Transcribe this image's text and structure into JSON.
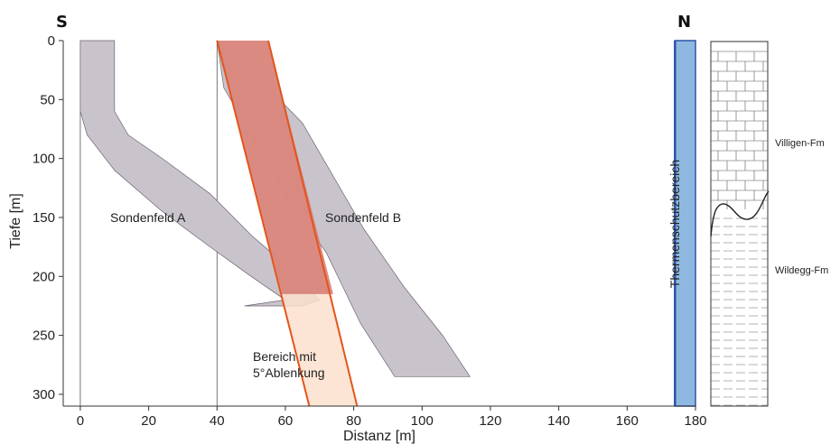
{
  "chart_data": {
    "type": "area",
    "title": "",
    "xlabel": "Distanz [m]",
    "ylabel": "Tiefe [m]",
    "xlim": [
      -5,
      180
    ],
    "ylim": [
      0,
      310
    ],
    "y_inverted": true,
    "x_ticks": [
      0,
      20,
      40,
      60,
      80,
      100,
      120,
      140,
      160,
      180
    ],
    "y_ticks": [
      0,
      50,
      100,
      150,
      200,
      250,
      300
    ],
    "side_labels": {
      "left": "S",
      "right": "N"
    },
    "series": [
      {
        "name": "Sondenfeld A",
        "color": "#c9c4cc",
        "left_edge": [
          [
            0,
            0
          ],
          [
            0,
            60
          ],
          [
            2,
            80
          ],
          [
            10,
            110
          ],
          [
            24,
            145
          ],
          [
            38,
            175
          ],
          [
            50,
            200
          ],
          [
            60,
            220
          ],
          [
            48,
            225
          ]
        ],
        "right_edge": [
          [
            10,
            0
          ],
          [
            10,
            60
          ],
          [
            14,
            80
          ],
          [
            24,
            100
          ],
          [
            38,
            130
          ],
          [
            50,
            165
          ],
          [
            62,
            195
          ],
          [
            70,
            220
          ],
          [
            65,
            225
          ]
        ]
      },
      {
        "name": "Sondenfeld B",
        "color": "#c9c4cc",
        "left_edge": [
          [
            40,
            0
          ],
          [
            42,
            40
          ],
          [
            52,
            90
          ],
          [
            62,
            140
          ],
          [
            72,
            180
          ],
          [
            82,
            240
          ],
          [
            92,
            285
          ]
        ],
        "right_edge": [
          [
            40,
            0
          ],
          [
            55,
            40
          ],
          [
            65,
            70
          ],
          [
            73,
            110
          ],
          [
            83,
            160
          ],
          [
            95,
            210
          ],
          [
            106,
            250
          ],
          [
            114,
            285
          ]
        ]
      },
      {
        "name": "Bereich mit 5°Ablenkung",
        "outer_color": "#fce0cc",
        "inner_color": "#d47a72",
        "edge_color": "#e3551c",
        "outer_left": [
          [
            40,
            0
          ],
          [
            67,
            310
          ]
        ],
        "outer_right": [
          [
            55,
            0
          ],
          [
            81,
            310
          ]
        ],
        "inner_left": [
          [
            40,
            0
          ],
          [
            59,
            215
          ]
        ],
        "inner_right": [
          [
            55,
            0
          ],
          [
            74,
            215
          ]
        ]
      }
    ],
    "labels": {
      "a": "Sondenfeld A",
      "b": "Sondenfeld B",
      "bereich_line1": "Bereich mit",
      "bereich_line2": "5°Ablenkung"
    },
    "vertical_guides": [
      0,
      40
    ],
    "protection_zone": {
      "label": "Thermenschutzbereich",
      "x_start": 174,
      "x_end": 180,
      "fill": "#8fb8e0",
      "edge": "#2a54a8"
    },
    "stratigraphy": {
      "upper": "Villigen-Fm",
      "lower": "Wildegg-Fm"
    }
  }
}
